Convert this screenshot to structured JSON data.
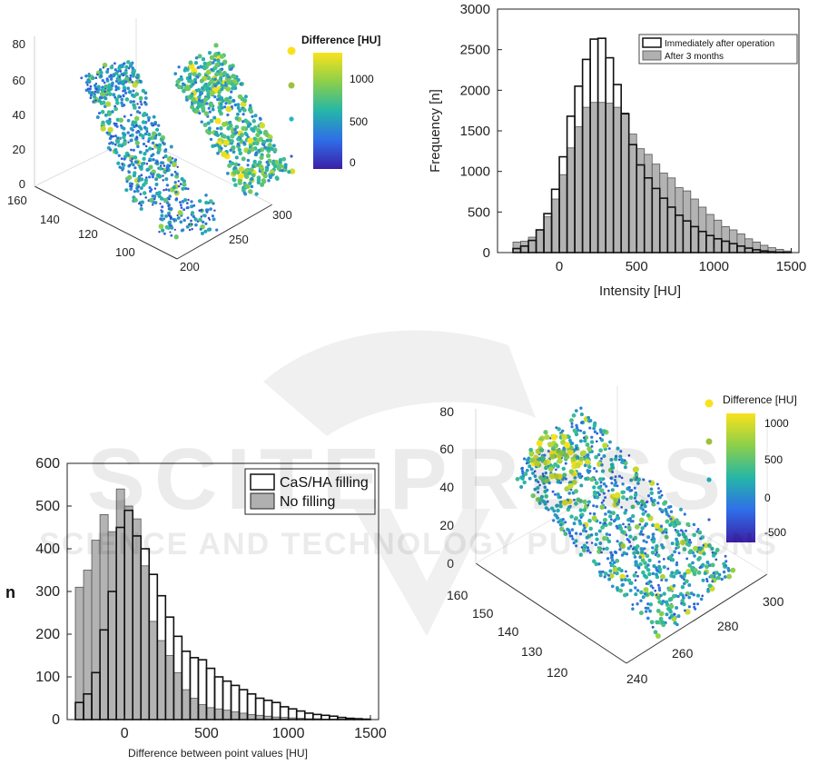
{
  "chart_data": [
    {
      "type": "scatter",
      "subtype": "3d-scatter",
      "colorbar": {
        "title": "Difference [HU]",
        "ticks": [
          "1000",
          "500",
          "0"
        ],
        "range": [
          -100,
          1200
        ]
      },
      "axes": {
        "z_ticks": [
          "0",
          "20",
          "40",
          "60",
          "80"
        ],
        "y_ticks": [
          "160",
          "140",
          "120",
          "100"
        ],
        "x_ticks": [
          "200",
          "250",
          "300"
        ]
      },
      "grid": true,
      "legend_position": "top-right",
      "colors": {
        "low": "#3b1fa6",
        "mid": "#25b6a8",
        "high": "#f9e21d"
      }
    },
    {
      "type": "bar",
      "subtype": "histogram-overlay",
      "xlabel": "Intensity [HU]",
      "ylabel": "Frequency [n]",
      "xlim": [
        -400,
        1550
      ],
      "ylim": [
        0,
        3000
      ],
      "x_ticks": [
        "0",
        "500",
        "1000",
        "1500"
      ],
      "y_ticks": [
        "0",
        "500",
        "1000",
        "1500",
        "2000",
        "2500",
        "3000"
      ],
      "bin_width": 50,
      "bin_start": -300,
      "legend_position": "top-right",
      "series": [
        {
          "name": "Immediately after operation",
          "style": "outline",
          "values": [
            50,
            80,
            150,
            280,
            480,
            780,
            1180,
            1680,
            2050,
            2380,
            2630,
            2640,
            2400,
            2070,
            1710,
            1330,
            1080,
            920,
            790,
            670,
            560,
            460,
            390,
            320,
            260,
            210,
            170,
            140,
            110,
            80,
            55,
            35,
            20,
            10,
            5,
            3
          ]
        },
        {
          "name": "After 3 months",
          "style": "filled",
          "values": [
            130,
            140,
            190,
            280,
            440,
            660,
            960,
            1290,
            1550,
            1790,
            1850,
            1850,
            1840,
            1790,
            1720,
            1460,
            1280,
            1210,
            1090,
            980,
            920,
            800,
            760,
            660,
            560,
            470,
            400,
            320,
            280,
            230,
            170,
            130,
            90,
            60,
            40,
            20
          ]
        }
      ]
    },
    {
      "type": "bar",
      "subtype": "histogram-overlay",
      "xlabel": "Difference between point values [HU]",
      "ylabel": "n",
      "xlim": [
        -350,
        1550
      ],
      "ylim": [
        0,
        600
      ],
      "x_ticks": [
        "0",
        "500",
        "1000",
        "1500"
      ],
      "y_ticks": [
        "0",
        "100",
        "200",
        "300",
        "400",
        "500",
        "600"
      ],
      "bin_width": 50,
      "bin_start": -300,
      "legend_position": "top-right",
      "series": [
        {
          "name": "CaS/HA filling",
          "style": "outline",
          "values": [
            40,
            60,
            110,
            210,
            300,
            450,
            490,
            430,
            400,
            340,
            290,
            240,
            195,
            160,
            145,
            140,
            120,
            100,
            90,
            80,
            70,
            60,
            50,
            45,
            40,
            30,
            25,
            20,
            15,
            12,
            10,
            8,
            5,
            3,
            2,
            1
          ]
        },
        {
          "name": "No filling",
          "style": "filled",
          "values": [
            310,
            350,
            420,
            480,
            440,
            540,
            500,
            470,
            360,
            230,
            185,
            150,
            110,
            70,
            50,
            35,
            28,
            25,
            22,
            18,
            15,
            12,
            10,
            8,
            6,
            5,
            4,
            3,
            2,
            2,
            1,
            1,
            1,
            0,
            0,
            0
          ]
        }
      ]
    },
    {
      "type": "scatter",
      "subtype": "3d-scatter",
      "colorbar": {
        "title": "Difference [HU]",
        "ticks": [
          "1000",
          "500",
          "0",
          "-500"
        ],
        "range": [
          -650,
          1200
        ]
      },
      "axes": {
        "z_ticks": [
          "0",
          "20",
          "40",
          "60",
          "80"
        ],
        "y_ticks": [
          "160",
          "150",
          "140",
          "130",
          "120"
        ],
        "x_ticks": [
          "240",
          "260",
          "280",
          "300"
        ]
      },
      "grid": true,
      "legend_position": "top-right",
      "colors": {
        "low": "#3b1fa6",
        "mid": "#25b6a8",
        "high": "#f9e21d"
      }
    }
  ],
  "watermark": {
    "title": "SCITEPRESS",
    "subtitle": "SCIENCE AND TECHNOLOGY PUBLICATIONS"
  }
}
